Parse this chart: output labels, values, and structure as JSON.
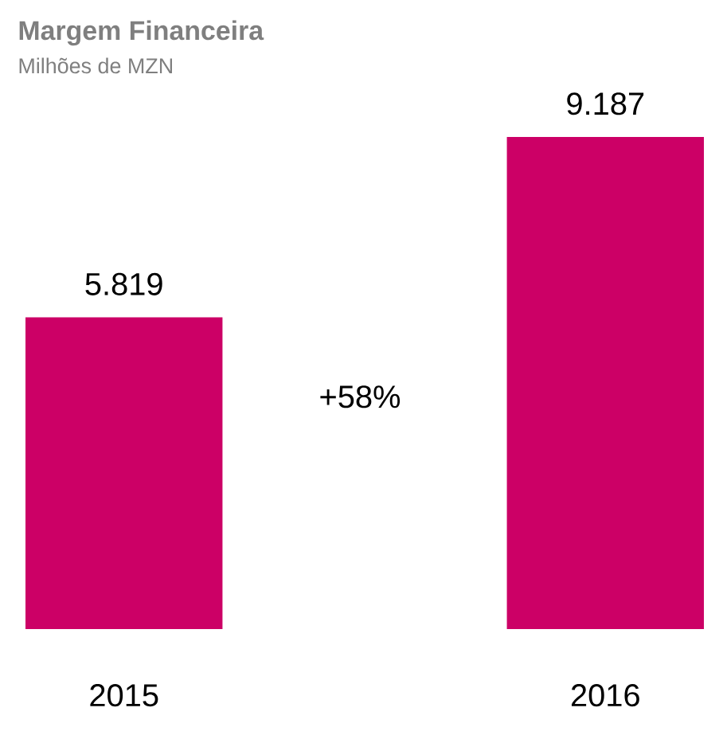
{
  "chart_data": {
    "type": "bar",
    "title": "Margem Financeira",
    "subtitle": "Milhões de MZN",
    "categories": [
      "2015",
      "2016"
    ],
    "values": [
      5819,
      9187
    ],
    "value_labels": [
      "5.819",
      "9.187"
    ],
    "color": "#cc0066",
    "annotations": [
      "+58%"
    ]
  }
}
